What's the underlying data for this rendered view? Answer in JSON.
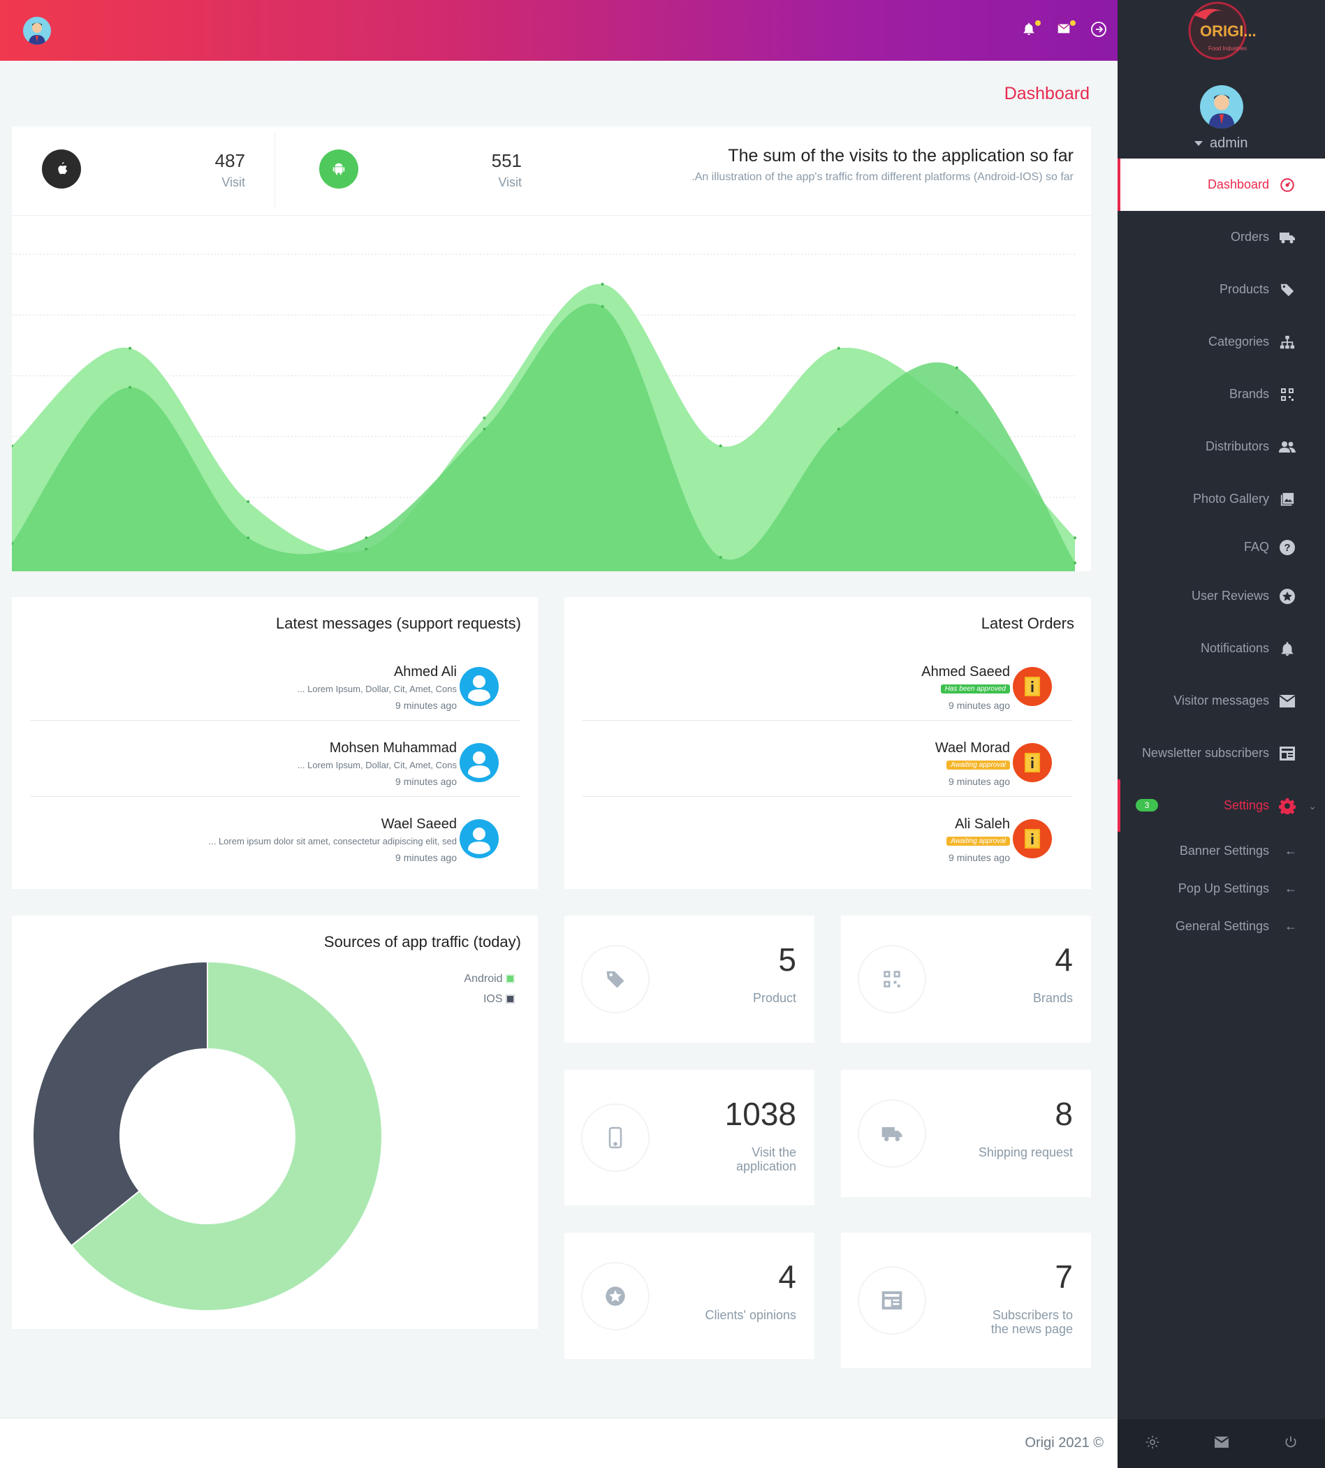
{
  "header": {
    "notification_icon": "bell-icon",
    "mail_icon": "envelope-icon",
    "logout_icon": "sign-out-icon"
  },
  "sidebar": {
    "logo_text": "ORIGI...",
    "logo_sub": "Food Industries",
    "user": "admin",
    "items": [
      {
        "label": "Dashboard",
        "icon": "dashboard-icon"
      },
      {
        "label": "Orders",
        "icon": "truck-icon"
      },
      {
        "label": "Products",
        "icon": "tags-icon"
      },
      {
        "label": "Categories",
        "icon": "sitemap-icon"
      },
      {
        "label": "Brands",
        "icon": "qrcode-icon"
      },
      {
        "label": "Distributors",
        "icon": "users-icon"
      },
      {
        "label": "Photo Gallery",
        "icon": "image-icon"
      },
      {
        "label": "FAQ",
        "icon": "question-icon"
      },
      {
        "label": "User Reviews",
        "icon": "star-icon"
      },
      {
        "label": "Notifications",
        "icon": "bell-icon"
      },
      {
        "label": "Visitor messages",
        "icon": "envelope-icon"
      },
      {
        "label": "Newsletter subscribers",
        "icon": "newspaper-icon"
      },
      {
        "label": "Settings",
        "icon": "gear-icon",
        "badge": "3"
      }
    ],
    "sub_items": [
      {
        "label": "Banner Settings"
      },
      {
        "label": "Pop Up Settings"
      },
      {
        "label": "General Settings"
      }
    ]
  },
  "page": {
    "title": "Dashboard"
  },
  "visits": {
    "ios_count": "487",
    "ios_label": "Visit",
    "android_count": "551",
    "android_label": "Visit",
    "title": "The sum of the visits to the application so far",
    "subtitle": ".An illustration of the app's traffic from different platforms (Android-IOS) so far"
  },
  "messages": {
    "title": "Latest messages (support requests)",
    "items": [
      {
        "name": "Ahmed Ali",
        "snippet": "... Lorem Ipsum, Dollar, Cit, Amet, Cons",
        "time": "9 minutes ago"
      },
      {
        "name": "Mohsen Muhammad",
        "snippet": "... Lorem Ipsum, Dollar, Cit, Amet, Cons",
        "time": "9 minutes ago"
      },
      {
        "name": "Wael Saeed",
        "snippet": "... Lorem ipsum dolor sit amet, consectetur adipiscing elit, sed",
        "time": "9 minutes ago"
      }
    ]
  },
  "orders": {
    "title": "Latest Orders",
    "items": [
      {
        "name": "Ahmed Saeed",
        "status": "Has been approved",
        "status_color": "#3fc14f",
        "time": "9 minutes ago"
      },
      {
        "name": "Wael Morad",
        "status": "Awaiting approval",
        "status_color": "#f5b52a",
        "time": "9 minutes ago"
      },
      {
        "name": "Ali Saleh",
        "status": "Awaiting approval",
        "status_color": "#f5b52a",
        "time": "9 minutes ago"
      }
    ]
  },
  "traffic": {
    "title": "Sources of app traffic (today)",
    "legend": [
      "Android",
      "IOS"
    ]
  },
  "stats": [
    {
      "value": "5",
      "label": "Product",
      "icon": "tags-icon"
    },
    {
      "value": "4",
      "label": "Brands",
      "icon": "qrcode-icon"
    },
    {
      "value": "1038",
      "label": "Visit the application",
      "icon": "mobile-icon"
    },
    {
      "value": "8",
      "label": "Shipping request",
      "icon": "truck-icon"
    },
    {
      "value": "4",
      "label": "Clients' opinions",
      "icon": "star-icon"
    },
    {
      "value": "7",
      "label": "Subscribers to the news page",
      "icon": "newspaper-icon"
    }
  ],
  "footer": {
    "text": "Origi 2021 ©"
  },
  "colors": {
    "accent": "#e8294e",
    "android": "#6cd977",
    "ios": "#4b5261",
    "sidebar_bg": "#272b34"
  },
  "chart_data": [
    {
      "type": "area",
      "x": [
        0,
        1,
        2,
        3,
        4,
        5,
        6,
        7,
        8,
        9
      ],
      "series": [
        {
          "values": [
            45,
            80,
            25,
            8,
            55,
            103,
            45,
            80,
            57,
            12
          ]
        },
        {
          "values": [
            10,
            66,
            12,
            12,
            51,
            95,
            5,
            51,
            73,
            3
          ]
        }
      ],
      "ylim": [
        0,
        120
      ],
      "grid": true
    },
    {
      "type": "pie",
      "categories": [
        "Android",
        "IOS"
      ],
      "values": [
        551,
        307
      ],
      "legend": "top-right"
    }
  ]
}
